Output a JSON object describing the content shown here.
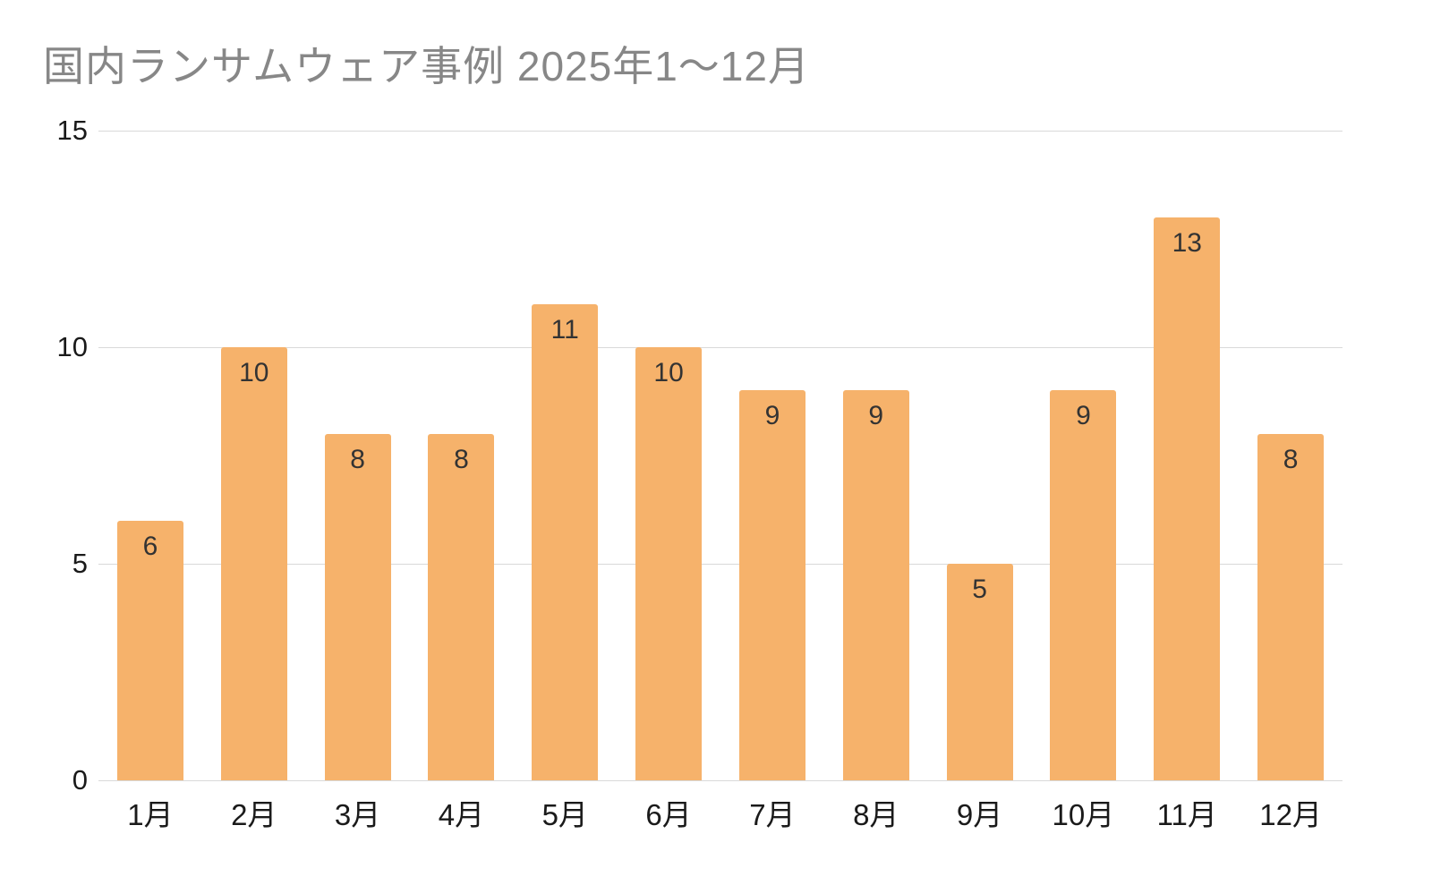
{
  "page": {
    "background": "#ffffff"
  },
  "chart_data": {
    "type": "bar",
    "title": "国内ランサムウェア事例 2025年1〜12月",
    "categories": [
      "1月",
      "2月",
      "3月",
      "4月",
      "5月",
      "6月",
      "7月",
      "8月",
      "9月",
      "10月",
      "11月",
      "12月"
    ],
    "values": [
      6,
      10,
      8,
      8,
      11,
      10,
      9,
      9,
      5,
      9,
      13,
      8
    ],
    "xlabel": "",
    "ylabel": "",
    "ylim": [
      0,
      15
    ],
    "yticks": [
      0,
      5,
      10,
      15
    ],
    "grid": true,
    "legend_position": "none",
    "data_labels": "inside-top",
    "colors": {
      "bar": "#f6b26b",
      "title": "#878787",
      "bar_label": "#333333",
      "axis_tick": "#1a1a1a",
      "gridline": "#d9d9d9"
    }
  }
}
